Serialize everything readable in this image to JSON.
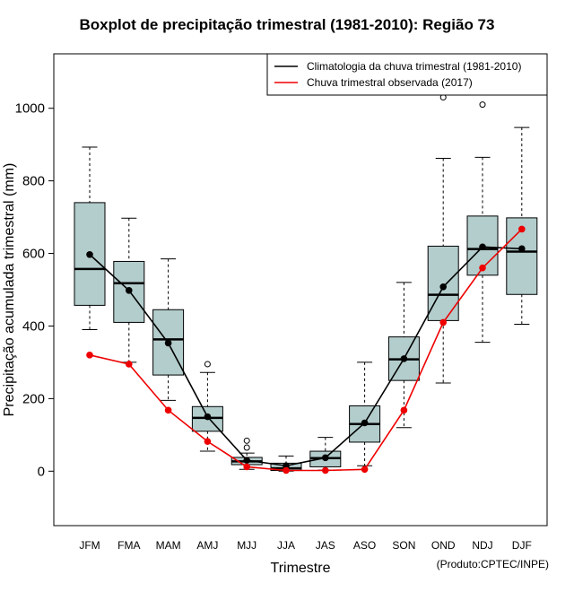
{
  "chart_data": {
    "type": "boxplot",
    "title": "Boxplot de precipitação trimestral (1981-2010): Região 73",
    "xlabel": "Trimestre",
    "ylabel": "Precipitação acumulada trimestral (mm)",
    "credit": "(Produto:CPTEC/INPE)",
    "ylim": [
      -150,
      1150
    ],
    "yticks": [
      0,
      200,
      400,
      600,
      800,
      1000
    ],
    "categories": [
      "JFM",
      "FMA",
      "MAM",
      "AMJ",
      "MJJ",
      "JJA",
      "JAS",
      "ASO",
      "SON",
      "OND",
      "NDJ",
      "DJF"
    ],
    "boxes": [
      {
        "min": 390,
        "q1": 457,
        "median": 557,
        "q3": 740,
        "max": 893,
        "outliers": []
      },
      {
        "min": 300,
        "q1": 410,
        "median": 518,
        "q3": 578,
        "max": 697,
        "outliers": []
      },
      {
        "min": 195,
        "q1": 265,
        "median": 363,
        "q3": 445,
        "max": 585,
        "outliers": []
      },
      {
        "min": 55,
        "q1": 110,
        "median": 147,
        "q3": 178,
        "max": 272,
        "outliers": [
          295
        ]
      },
      {
        "min": 5,
        "q1": 18,
        "median": 27,
        "q3": 38,
        "max": 50,
        "outliers": [
          65,
          84
        ]
      },
      {
        "min": 0,
        "q1": 2,
        "median": 8,
        "q3": 22,
        "max": 42,
        "outliers": []
      },
      {
        "min": 3,
        "q1": 12,
        "median": 36,
        "q3": 55,
        "max": 93,
        "outliers": []
      },
      {
        "min": 15,
        "q1": 80,
        "median": 130,
        "q3": 180,
        "max": 300,
        "outliers": []
      },
      {
        "min": 120,
        "q1": 250,
        "median": 308,
        "q3": 370,
        "max": 520,
        "outliers": []
      },
      {
        "min": 243,
        "q1": 415,
        "median": 486,
        "q3": 620,
        "max": 862,
        "outliers": [
          1030
        ]
      },
      {
        "min": 355,
        "q1": 540,
        "median": 612,
        "q3": 703,
        "max": 865,
        "outliers": [
          1010
        ]
      },
      {
        "min": 405,
        "q1": 487,
        "median": 605,
        "q3": 698,
        "max": 947,
        "outliers": []
      }
    ],
    "series": [
      {
        "name": "Climatologia da chuva trimestral (1981-2010)",
        "color": "#000000",
        "values": [
          597,
          498,
          353,
          150,
          30,
          15,
          37,
          133,
          310,
          508,
          618,
          613
        ]
      },
      {
        "name": "Chuva trimestral observada (2017)",
        "color": "#ee0000",
        "values": [
          320,
          295,
          168,
          82,
          12,
          2,
          2,
          5,
          168,
          410,
          560,
          667
        ]
      }
    ],
    "box_fill": "#b3cccc",
    "legend_position": "top-right"
  }
}
